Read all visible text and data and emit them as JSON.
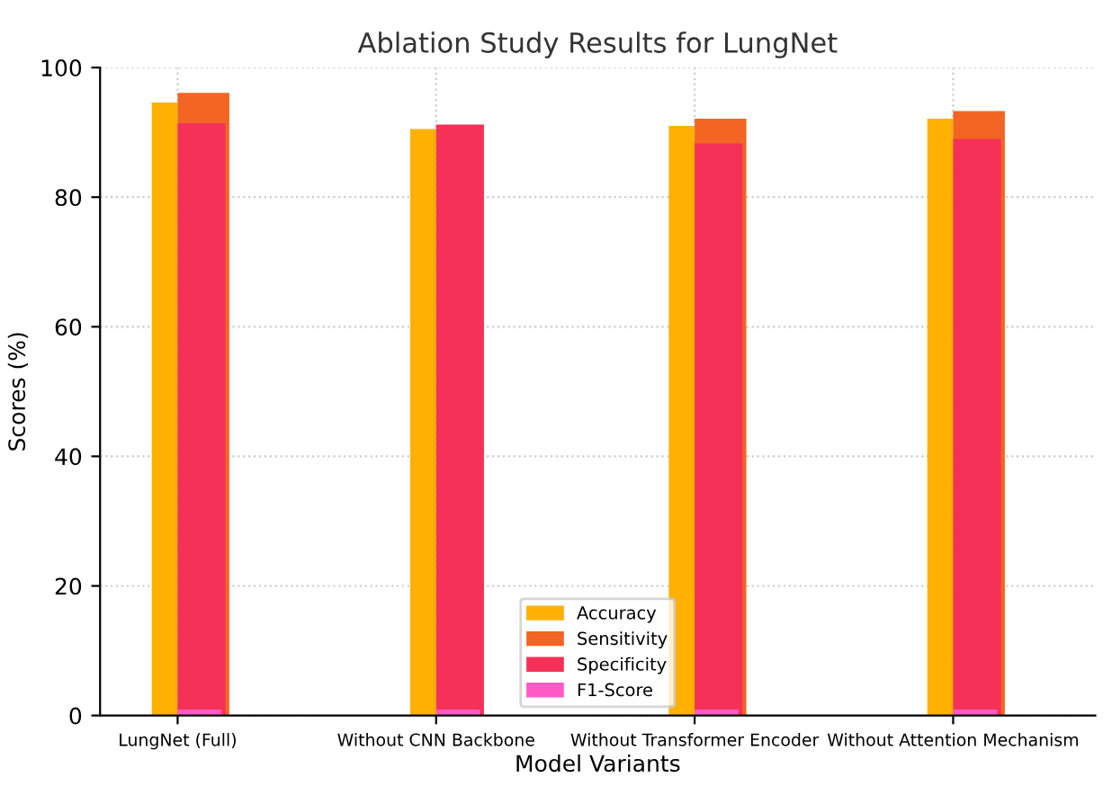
{
  "chart_data": {
    "type": "bar",
    "title": "Ablation Study Results for LungNet",
    "xlabel": "Model Variants",
    "ylabel": "Scores (%)",
    "categories": [
      "LungNet (Full)",
      "Without CNN Backbone",
      "Without Transformer Encoder",
      "Without Attention Mechanism"
    ],
    "series": [
      {
        "name": "Accuracy",
        "color": "#ffb000",
        "values": [
          94.6,
          90.5,
          91.0,
          92.1
        ]
      },
      {
        "name": "Sensitivity",
        "color": "#f26522",
        "values": [
          96.1,
          null,
          92.1,
          93.3
        ]
      },
      {
        "name": "Specificity",
        "color": "#f53157",
        "values": [
          91.4,
          91.2,
          88.3,
          89.0
        ]
      },
      {
        "name": "F1-Score",
        "color": "#ff5bc6",
        "values": [
          0.9,
          0.9,
          0.9,
          0.9
        ]
      }
    ],
    "ylim": [
      0,
      100
    ],
    "yticks": [
      0,
      20,
      40,
      60,
      80,
      100
    ],
    "grid": true,
    "legend": "bottom"
  }
}
